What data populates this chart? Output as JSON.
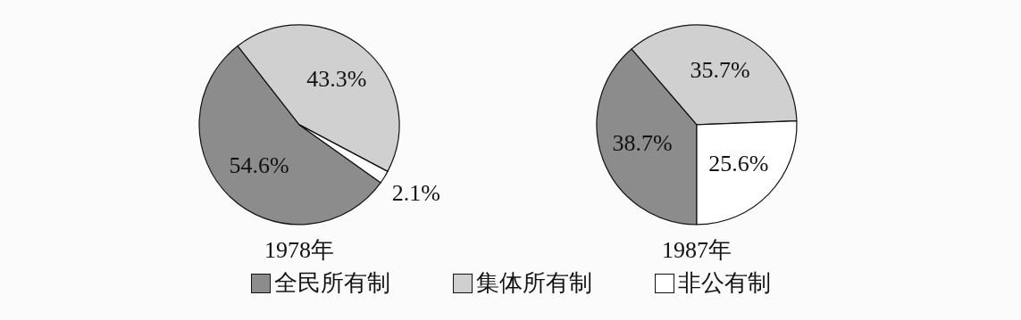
{
  "chart_data": [
    {
      "type": "pie",
      "title": "1978年",
      "categories": [
        "全民所有制",
        "集体所有制",
        "非公有制"
      ],
      "values": [
        54.6,
        43.3,
        2.1
      ],
      "colors": [
        "#8c8c8c",
        "#d0d0d0",
        "#ffffff"
      ],
      "value_labels": [
        "54.6%",
        "43.3%",
        "2.1%"
      ],
      "legend": "bottom"
    },
    {
      "type": "pie",
      "title": "1987年",
      "categories": [
        null,
        null,
        null
      ],
      "values": [
        38.7,
        35.7,
        25.6
      ],
      "colors": [
        "#8c8c8c",
        "#d0d0d0",
        "#ffffff"
      ],
      "value_labels": [
        "38.7%",
        "35.7%",
        "25.6%"
      ]
    }
  ]
}
